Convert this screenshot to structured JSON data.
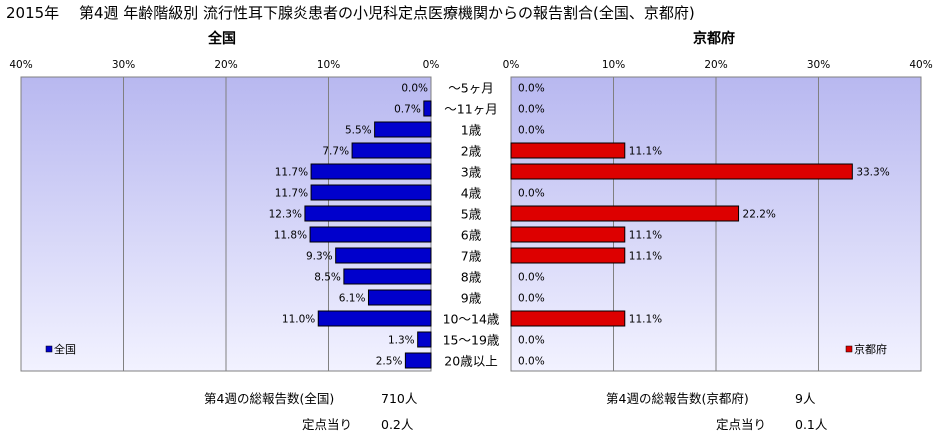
{
  "title": {
    "year": "2015年",
    "text": "第4週 年齢階級別 流行性耳下腺炎患者の小児科定点医療機関からの報告割合(全国、京都府)"
  },
  "colors": {
    "national_bar": "#0000cc",
    "kyoto_bar": "#dd0000",
    "plot_bg_top": "#b8b8f0",
    "plot_bg_bottom": "#f2f2ff",
    "gridline": "#808080"
  },
  "chart_data": [
    {
      "type": "bar",
      "orientation": "horizontal",
      "direction": "right-to-left",
      "title": "全国",
      "categories": [
        "～5ヶ月",
        "～11ヶ月",
        "1歳",
        "2歳",
        "3歳",
        "4歳",
        "5歳",
        "6歳",
        "7歳",
        "8歳",
        "9歳",
        "10～14歳",
        "15～19歳",
        "20歳以上"
      ],
      "series": [
        {
          "name": "全国",
          "values": [
            0.0,
            0.7,
            5.5,
            7.7,
            11.7,
            11.7,
            12.3,
            11.8,
            9.3,
            8.5,
            6.1,
            11.0,
            1.3,
            2.5
          ],
          "labels": [
            "0.0%",
            "0.7%",
            "5.5%",
            "7.7%",
            "11.7%",
            "11.7%",
            "12.3%",
            "11.8%",
            "9.3%",
            "8.5%",
            "6.1%",
            "11.0%",
            "1.3%",
            "2.5%"
          ]
        }
      ],
      "xlim": [
        0,
        40
      ],
      "ticks": [
        "0%",
        "10%",
        "20%",
        "30%",
        "40%"
      ],
      "grid": true,
      "legend": "bottom-left"
    },
    {
      "type": "bar",
      "orientation": "horizontal",
      "direction": "left-to-right",
      "title": "京都府",
      "categories": [
        "～5ヶ月",
        "～11ヶ月",
        "1歳",
        "2歳",
        "3歳",
        "4歳",
        "5歳",
        "6歳",
        "7歳",
        "8歳",
        "9歳",
        "10～14歳",
        "15～19歳",
        "20歳以上"
      ],
      "series": [
        {
          "name": "京都府",
          "values": [
            0.0,
            0.0,
            0.0,
            11.1,
            33.3,
            0.0,
            22.2,
            11.1,
            11.1,
            0.0,
            0.0,
            11.1,
            0.0,
            0.0
          ],
          "labels": [
            "0.0%",
            "0.0%",
            "0.0%",
            "11.1%",
            "33.3%",
            "0.0%",
            "22.2%",
            "11.1%",
            "11.1%",
            "0.0%",
            "0.0%",
            "11.1%",
            "0.0%",
            "0.0%"
          ]
        }
      ],
      "xlim": [
        0,
        40
      ],
      "ticks": [
        "0%",
        "10%",
        "20%",
        "30%",
        "40%"
      ],
      "grid": true,
      "legend": "bottom-right"
    }
  ],
  "footer": {
    "national_total_label": "第4週の総報告数(全国)",
    "national_total_value": "710人",
    "national_per_site_label": "定点当り",
    "national_per_site_value": "0.2人",
    "kyoto_total_label": "第4週の総報告数(京都府)",
    "kyoto_total_value": "9人",
    "kyoto_per_site_label": "定点当り",
    "kyoto_per_site_value": "0.1人"
  }
}
